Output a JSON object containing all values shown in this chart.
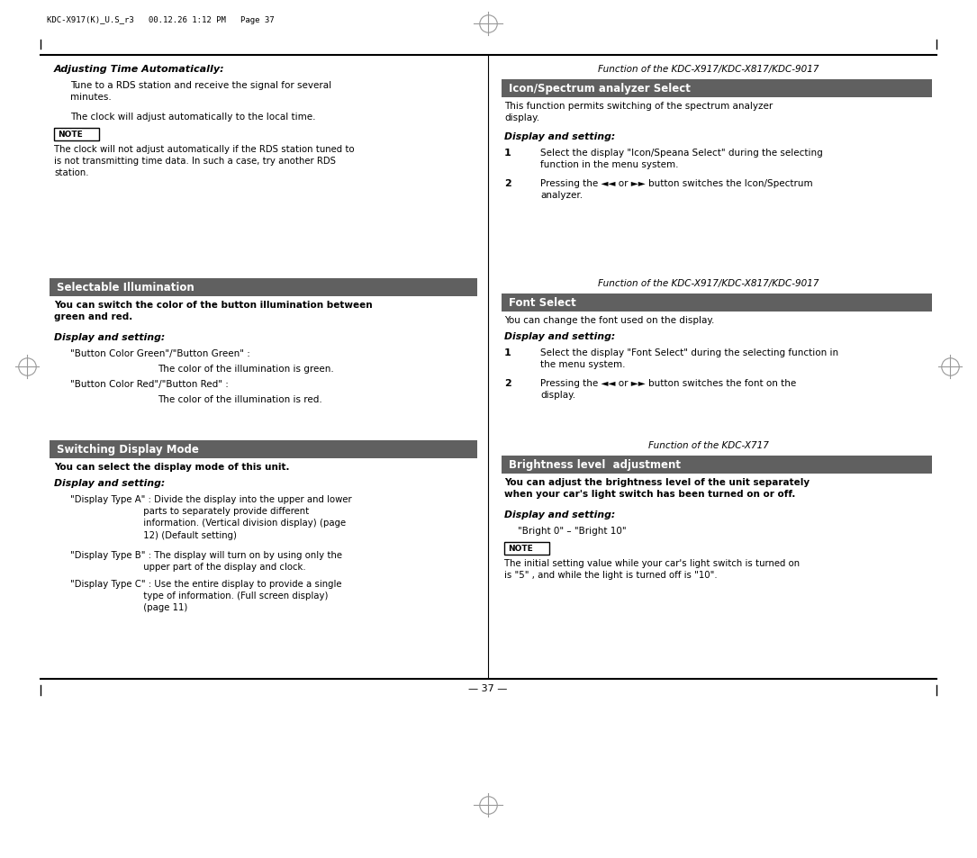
{
  "bg_color": "#ffffff",
  "header_bar_color": "#606060",
  "page_header": "KDC-X917(K)_U.S_r3   00.12.26 1:12 PM   Page 37",
  "page_number": "— 37 —",
  "left": {
    "adj_title": "Adjusting Time Automatically:",
    "adj_body1": "Tune to a RDS station and receive the signal for several\nminutes.",
    "adj_body2": "The clock will adjust automatically to the local time.",
    "adj_note": "The clock will not adjust automatically if the RDS station tuned to\nis not transmitting time data. In such a case, try another RDS\nstation.",
    "sel_header": "Selectable Illumination",
    "sel_body": "You can switch the color of the button illumination between\ngreen and red.",
    "sel_ds": "Display and setting:",
    "sel_i1": "\"Button Color Green\"/\"Button Green\" :",
    "sel_i1b": "The color of the illumination is green.",
    "sel_i2": "\"Button Color Red\"/\"Button Red\" :",
    "sel_i2b": "The color of the illumination is red.",
    "sw_header": "Switching Display Mode",
    "sw_body": "You can select the display mode of this unit.",
    "sw_ds": "Display and setting:",
    "sw_ta": "\"Display Type A\" : Divide the display into the upper and lower\n                         parts to separately provide different\n                         information. (Vertical division display) (page\n                         12) (Default setting)",
    "sw_tb": "\"Display Type B\" : The display will turn on by using only the\n                         upper part of the display and clock.",
    "sw_tc": "\"Display Type C\" : Use the entire display to provide a single\n                         type of information. (Full screen display)\n                         (page 11)"
  },
  "right": {
    "icon_func": "Function of the KDC-X917/KDC-X817/KDC-9017",
    "icon_header": "Icon/Spectrum analyzer Select",
    "icon_body": "This function permits switching of the spectrum analyzer\ndisplay.",
    "icon_ds": "Display and setting:",
    "icon_1": "Select the display \"Icon/Speana Select\" during the selecting\nfunction in the menu system.",
    "icon_2": "Pressing the ◄◄ or ►► button switches the Icon/Spectrum\nanalyzer.",
    "font_func": "Function of the KDC-X917/KDC-X817/KDC-9017",
    "font_header": "Font Select",
    "font_body": "You can change the font used on the display.",
    "font_ds": "Display and setting:",
    "font_1": "Select the display \"Font Select\" during the selecting function in\nthe menu system.",
    "font_2": "Pressing the ◄◄ or ►► button switches the font on the\ndisplay.",
    "bri_func": "Function of the KDC-X717",
    "bri_header": "Brightness level  adjustment",
    "bri_body": "You can adjust the brightness level of the unit separately\nwhen your car's light switch has been turned on or off.",
    "bri_ds": "Display and setting:",
    "bri_range": "\"Bright 0\" – \"Bright 10\"",
    "bri_note": "The initial setting value while your car's light switch is turned on\nis \"5\" , and while the light is turned off is \"10\"."
  }
}
